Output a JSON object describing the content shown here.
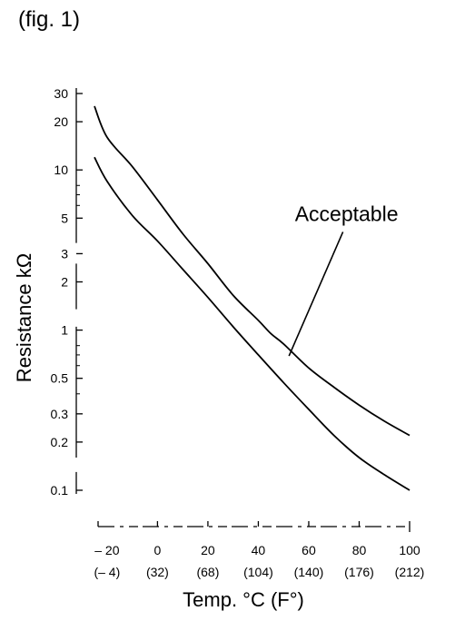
{
  "caption": "(fig. 1)",
  "chart_data": {
    "type": "line",
    "title": "",
    "xlabel": "Temp. °C (F°)",
    "ylabel": "Resistance kΩ",
    "xlim": [
      -25,
      100
    ],
    "ylim": [
      0.1,
      30
    ],
    "yscale": "log",
    "grid": false,
    "x_ticks": [
      {
        "c": -20,
        "label": "– 20",
        "f_label": "(– 4)"
      },
      {
        "c": 0,
        "label": "0",
        "f_label": "(32)"
      },
      {
        "c": 20,
        "label": "20",
        "f_label": "(68)"
      },
      {
        "c": 40,
        "label": "40",
        "f_label": "(104)"
      },
      {
        "c": 60,
        "label": "60",
        "f_label": "(140)"
      },
      {
        "c": 80,
        "label": "80",
        "f_label": "(176)"
      },
      {
        "c": 100,
        "label": "100",
        "f_label": "(212)"
      }
    ],
    "y_ticks": [
      {
        "v": 30,
        "label": "30"
      },
      {
        "v": 20,
        "label": "20"
      },
      {
        "v": 10,
        "label": "10"
      },
      {
        "v": 5,
        "label": "5"
      },
      {
        "v": 3,
        "label": "3"
      },
      {
        "v": 2,
        "label": "2"
      },
      {
        "v": 1,
        "label": "1"
      },
      {
        "v": 0.5,
        "label": "0.5"
      },
      {
        "v": 0.3,
        "label": "0.3"
      },
      {
        "v": 0.2,
        "label": "0.2"
      },
      {
        "v": 0.1,
        "label": "0.1"
      }
    ],
    "series": [
      {
        "x": [
          -25,
          -20,
          -10,
          0,
          10,
          20,
          30,
          40,
          45,
          50,
          60,
          70,
          80,
          90,
          100
        ],
        "y": [
          25,
          16,
          10.5,
          6.5,
          4.0,
          2.6,
          1.65,
          1.15,
          0.95,
          0.82,
          0.58,
          0.44,
          0.34,
          0.27,
          0.22
        ]
      },
      {
        "x": [
          -25,
          -20,
          -10,
          0,
          10,
          20,
          30,
          40,
          50,
          60,
          70,
          80,
          90,
          100
        ],
        "y": [
          12,
          8.5,
          5.2,
          3.6,
          2.4,
          1.6,
          1.05,
          0.7,
          0.47,
          0.32,
          0.22,
          0.16,
          0.125,
          0.1
        ]
      }
    ],
    "annotations": [
      {
        "text": "Acceptable",
        "x": 75,
        "y": 4.8,
        "points_to": {
          "x": 50,
          "y": 0.85
        }
      }
    ]
  }
}
